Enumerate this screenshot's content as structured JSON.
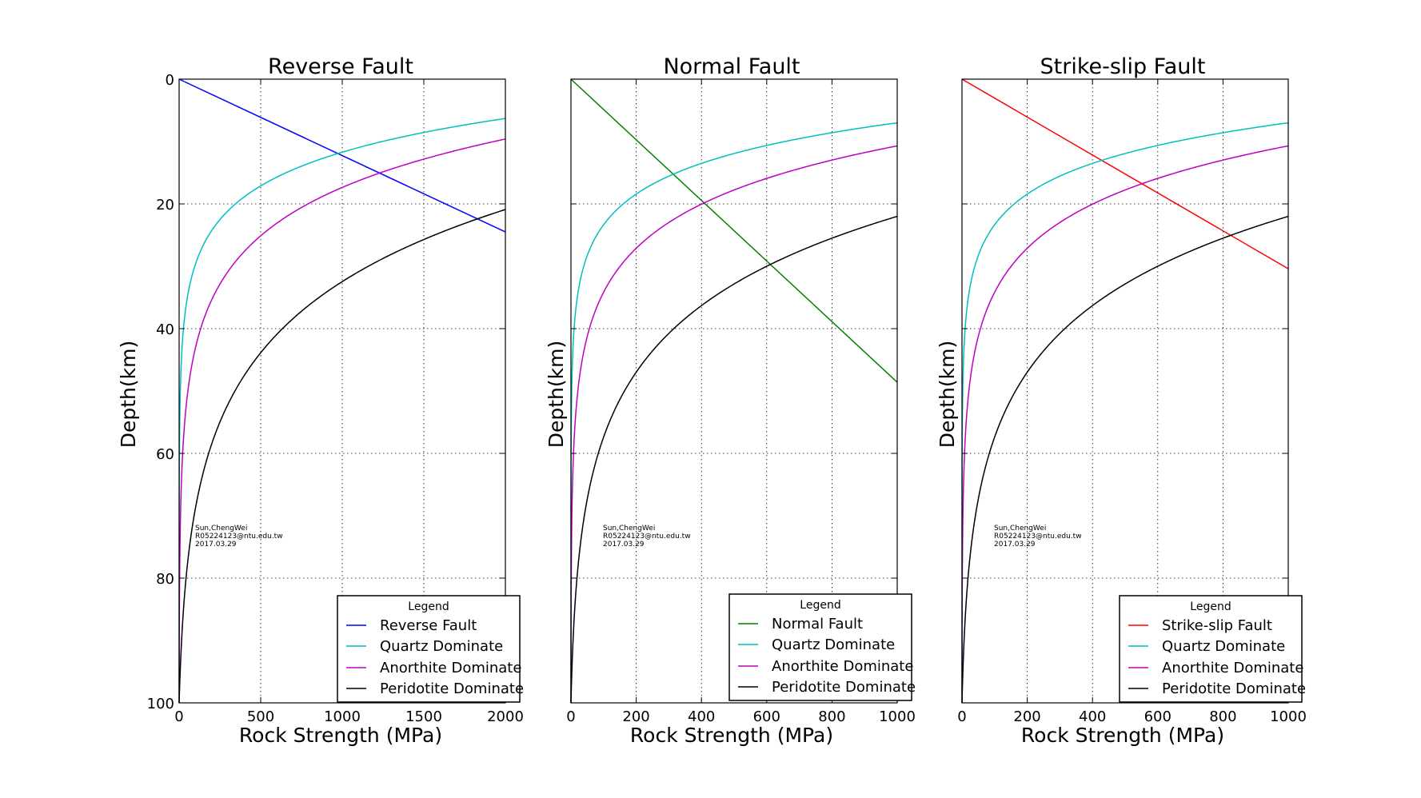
{
  "chart_data": [
    {
      "type": "line",
      "title": "Reverse Fault",
      "xlabel": "Rock Strength (MPa)",
      "ylabel": "Depth(km)",
      "xlim": [
        0,
        2000
      ],
      "ylim": [
        100,
        0
      ],
      "xticks": [
        "0",
        "500",
        "1000",
        "1500",
        "2000"
      ],
      "yticks": [
        "0",
        "20",
        "40",
        "60",
        "80",
        "100"
      ],
      "show_yticklabels": true,
      "grid": true,
      "legend": {
        "title": "Legend",
        "placement": "lower-right"
      },
      "annotation": [
        "Sun,ChengWei",
        "R05224123@ntu.edu.tw",
        "2017.03.29"
      ],
      "series": [
        {
          "name": "Reverse Fault",
          "color": "#0000ff",
          "kind": "linear",
          "x": [
            0,
            2000
          ],
          "y": [
            0,
            24.5
          ]
        },
        {
          "name": "Quartz Dominate",
          "color": "#00bfbf",
          "kind": "creep",
          "xlimit": 2000,
          "y_end": 6.3,
          "b": 7.8
        },
        {
          "name": "Anorthite Dominate",
          "color": "#bf00bf",
          "kind": "creep",
          "xlimit": 2000,
          "y_end": 9.6,
          "b": 11.2
        },
        {
          "name": "Peridotite Dominate",
          "color": "#000000",
          "kind": "creep",
          "xlimit": 2000,
          "y_end": 20.9,
          "b": 16.9
        }
      ]
    },
    {
      "type": "line",
      "title": "Normal Fault",
      "xlabel": "Rock Strength (MPa)",
      "ylabel": "Depth(km)",
      "xlim": [
        0,
        1000
      ],
      "ylim": [
        100,
        0
      ],
      "xticks": [
        "0",
        "200",
        "400",
        "600",
        "800",
        "1000"
      ],
      "yticks": [
        "0",
        "20",
        "40",
        "60",
        "80",
        "100"
      ],
      "show_yticklabels": false,
      "grid": true,
      "legend": {
        "title": "Legend",
        "placement": "lower-right"
      },
      "annotation": [
        "Sun,ChengWei",
        "R05224123@ntu.edu.tw",
        "2017.03.29"
      ],
      "series": [
        {
          "name": "Normal Fault",
          "color": "#008000",
          "kind": "linear",
          "x": [
            0,
            1000
          ],
          "y": [
            0,
            48.6
          ]
        },
        {
          "name": "Quartz Dominate",
          "color": "#00bfbf",
          "kind": "creep",
          "xlimit": 1000,
          "y_end": 7.0,
          "b": 7.1
        },
        {
          "name": "Anorthite Dominate",
          "color": "#bf00bf",
          "kind": "creep",
          "xlimit": 1000,
          "y_end": 10.7,
          "b": 10.2
        },
        {
          "name": "Peridotite Dominate",
          "color": "#000000",
          "kind": "creep",
          "xlimit": 1000,
          "y_end": 22.0,
          "b": 15.8
        }
      ]
    },
    {
      "type": "line",
      "title": "Strike-slip Fault",
      "xlabel": "Rock Strength (MPa)",
      "ylabel": "Depth(km)",
      "xlim": [
        0,
        1000
      ],
      "ylim": [
        100,
        0
      ],
      "xticks": [
        "0",
        "200",
        "400",
        "600",
        "800",
        "1000"
      ],
      "yticks": [
        "0",
        "20",
        "40",
        "60",
        "80",
        "100"
      ],
      "show_yticklabels": false,
      "grid": true,
      "legend": {
        "title": "Legend",
        "placement": "lower-right"
      },
      "annotation": [
        "Sun,ChengWei",
        "R05224123@ntu.edu.tw",
        "2017.03.29"
      ],
      "series": [
        {
          "name": "Strike-slip Fault",
          "color": "#ff0000",
          "kind": "linear",
          "x": [
            0,
            1000
          ],
          "y": [
            0,
            30.4
          ]
        },
        {
          "name": "Quartz Dominate",
          "color": "#00bfbf",
          "kind": "creep",
          "xlimit": 1000,
          "y_end": 7.0,
          "b": 7.1
        },
        {
          "name": "Anorthite Dominate",
          "color": "#bf00bf",
          "kind": "creep",
          "xlimit": 1000,
          "y_end": 10.7,
          "b": 10.2
        },
        {
          "name": "Peridotite Dominate",
          "color": "#000000",
          "kind": "creep",
          "xlimit": 1000,
          "y_end": 22.0,
          "b": 15.8
        }
      ]
    }
  ]
}
